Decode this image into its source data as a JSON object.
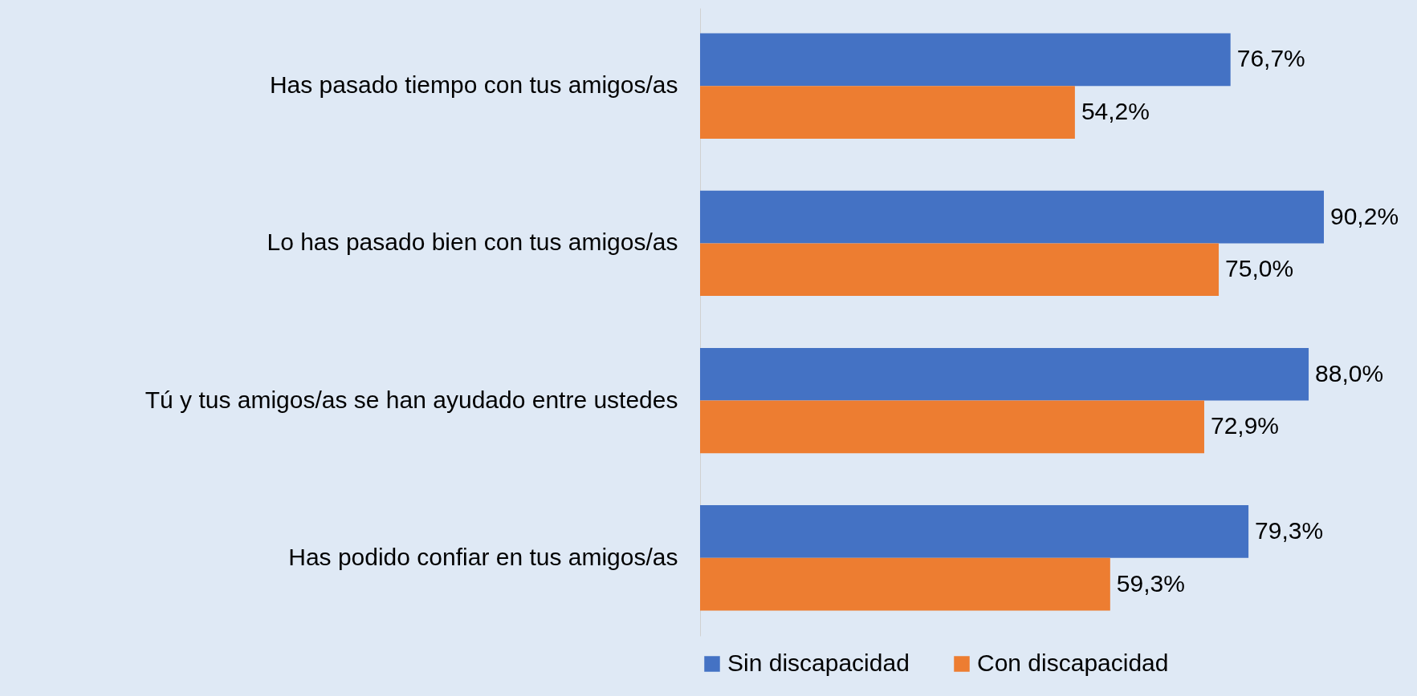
{
  "chart_data": {
    "type": "bar",
    "orientation": "horizontal",
    "categories": [
      "Has pasado tiempo con tus amigos/as",
      "Lo has pasado bien con tus amigos/as",
      "Tú y tus amigos/as se han ayudado entre ustedes",
      "Has podido confiar en tus amigos/as"
    ],
    "series": [
      {
        "name": "Sin discapacidad",
        "color": "#4472c4",
        "values": [
          76.7,
          90.2,
          88.0,
          79.3
        ],
        "value_labels": [
          "76,7%",
          "90,2%",
          "88,0%",
          "79,3%"
        ]
      },
      {
        "name": "Con discapacidad",
        "color": "#ed7d31",
        "values": [
          54.2,
          75.0,
          72.9,
          59.3
        ],
        "value_labels": [
          "54,2%",
          "75,0%",
          "72,9%",
          "59,3%"
        ]
      }
    ],
    "legend": "bottom"
  }
}
